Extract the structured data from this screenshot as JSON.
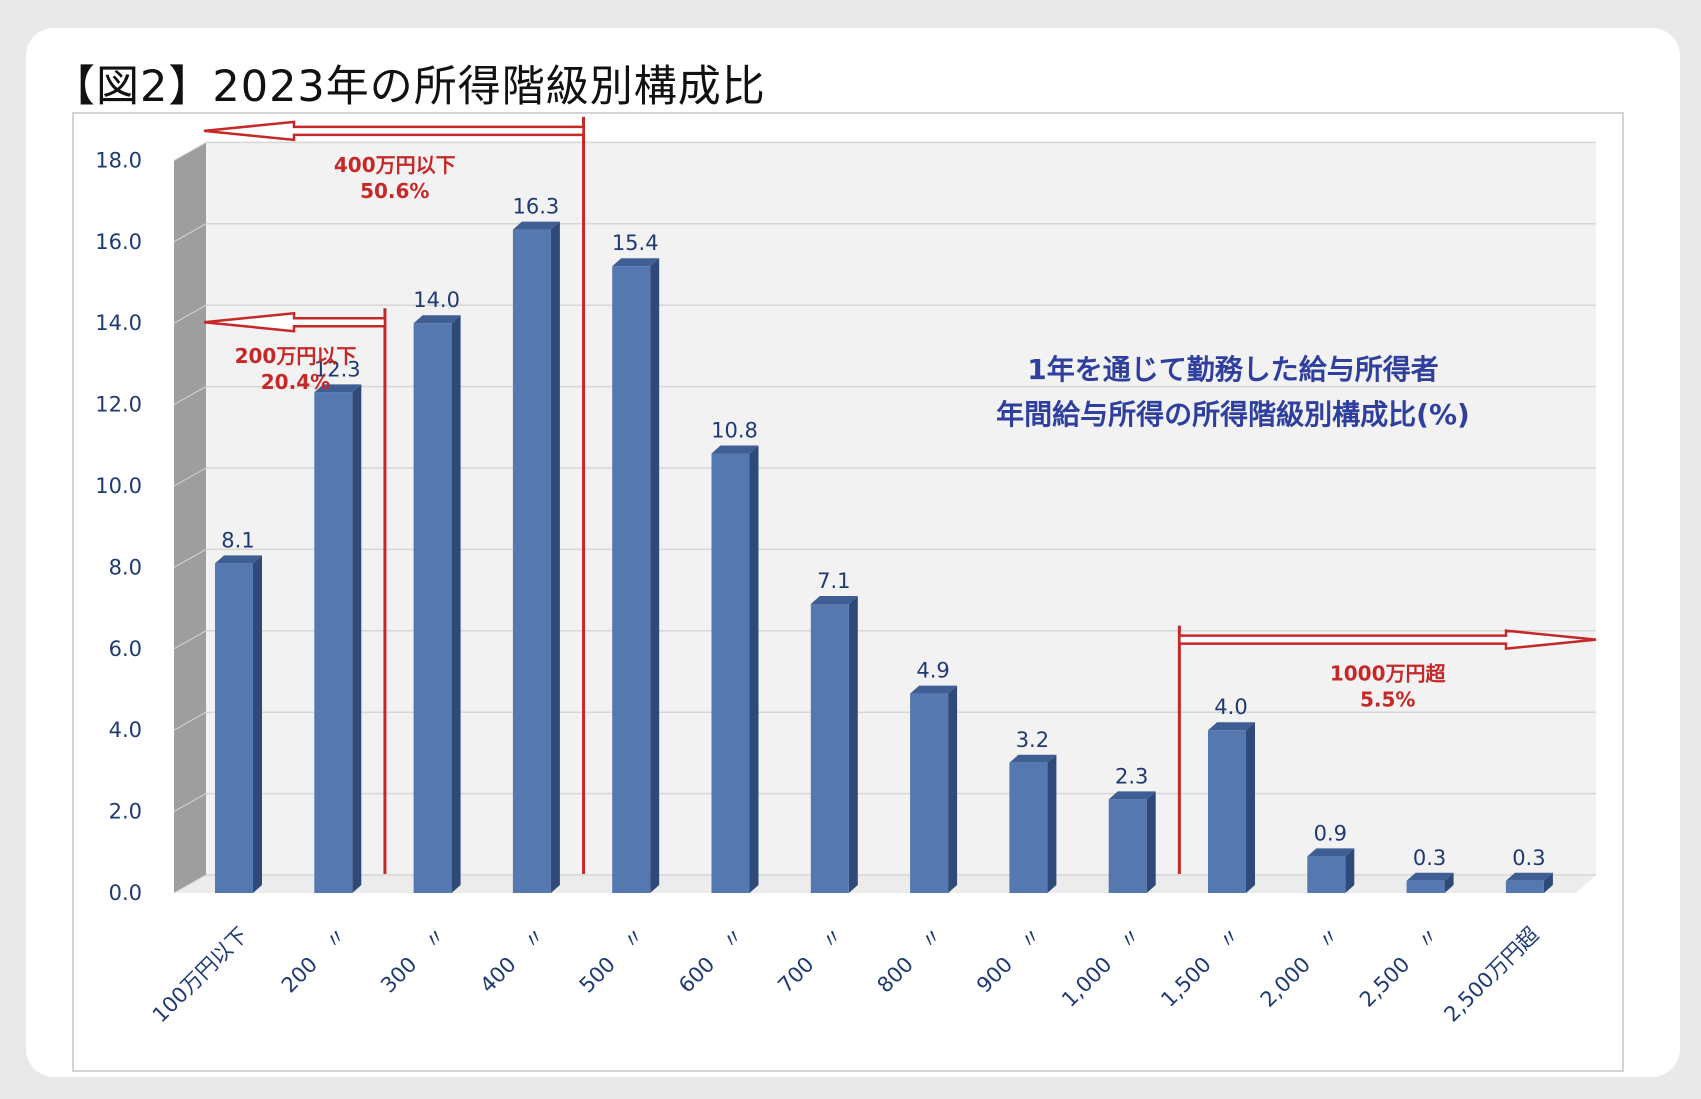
{
  "page_title": "【図2】2023年の所得階級別構成比",
  "chart_data": {
    "type": "bar",
    "title": "【図2】2023年の所得階級別構成比",
    "inner_title_lines": [
      "1年を通じて勤務した給与所得者",
      "年間給与所得の所得階級別構成比(%)"
    ],
    "categories": [
      "100万円以下",
      "200　〃",
      "300　〃",
      "400　〃",
      "500　〃",
      "600　〃",
      "700　〃",
      "800　〃",
      "900　〃",
      "1,000　〃",
      "1,500　〃",
      "2,000　〃",
      "2,500　〃",
      "2,500万円超"
    ],
    "values": [
      8.1,
      12.3,
      14.0,
      16.3,
      15.4,
      10.8,
      7.1,
      4.9,
      3.2,
      2.3,
      4.0,
      0.9,
      0.3,
      0.3
    ],
    "value_labels": [
      "8.1",
      "12.3",
      "14.0",
      "16.3",
      "15.4",
      "10.8",
      "7.1",
      "4.9",
      "3.2",
      "2.3",
      "4.0",
      "0.9",
      "0.3",
      "0.3"
    ],
    "ylim": [
      0,
      18
    ],
    "yticks": [
      "0.0",
      "2.0",
      "4.0",
      "6.0",
      "8.0",
      "10.0",
      "12.0",
      "14.0",
      "16.0",
      "18.0"
    ],
    "grid": true,
    "style": "3d",
    "xlabel": "",
    "ylabel": "",
    "annotations": [
      {
        "lines": [
          "400万円以下",
          "50.6%"
        ],
        "after_category_index": 3,
        "direction": "left",
        "level": 18.7
      },
      {
        "lines": [
          "200万円以下",
          "20.4%"
        ],
        "after_category_index": 1,
        "direction": "left",
        "level": 14.0
      },
      {
        "lines": [
          "1000万円超",
          "5.5%"
        ],
        "after_category_index": 9,
        "direction": "right",
        "level": 6.2
      }
    ]
  },
  "colors": {
    "bar_front": "#5578b0",
    "bar_side": "#2f4a78",
    "bar_top": "#3f5f94",
    "annotation_red": "#c62828",
    "text_blue": "#1f3a73",
    "inner_title_blue": "#2e3f9e"
  }
}
